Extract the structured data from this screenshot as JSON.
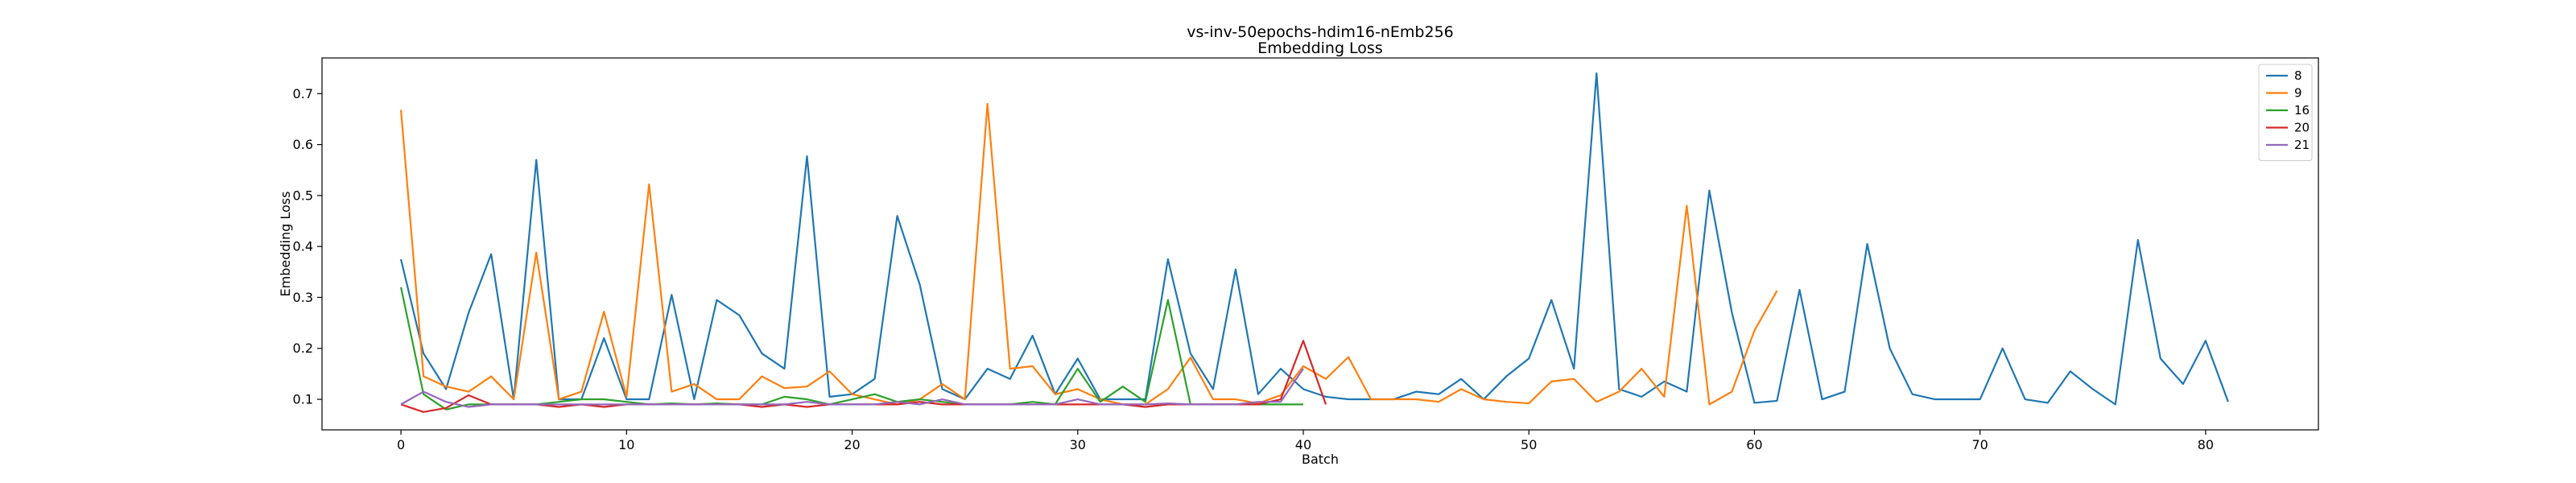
{
  "chart_data": {
    "type": "line",
    "title": "vs-inv-50epochs-hdim16-nEmb256",
    "subtitle": "Embedding Loss",
    "xlabel": "Batch",
    "ylabel": "Embedding Loss",
    "xlim": [
      -3.5,
      85
    ],
    "ylim": [
      0.04,
      0.77
    ],
    "xticks": [
      0,
      10,
      20,
      30,
      40,
      50,
      60,
      70,
      80
    ],
    "yticks": [
      0.1,
      0.2,
      0.3,
      0.4,
      0.5,
      0.6,
      0.7
    ],
    "grid": false,
    "legend_position": "top-right",
    "series": [
      {
        "name": "8",
        "color": "#1f77b4",
        "values": [
          0.375,
          0.19,
          0.12,
          0.27,
          0.385,
          0.1,
          0.57,
          0.1,
          0.1,
          0.22,
          0.1,
          0.1,
          0.305,
          0.1,
          0.295,
          0.265,
          0.19,
          0.16,
          0.577,
          0.105,
          0.11,
          0.14,
          0.46,
          0.325,
          0.12,
          0.1,
          0.16,
          0.14,
          0.225,
          0.11,
          0.18,
          0.1,
          0.1,
          0.1,
          0.375,
          0.19,
          0.12,
          0.355,
          0.11,
          0.16,
          0.12,
          0.105,
          0.1,
          0.1,
          0.1,
          0.115,
          0.11,
          0.14,
          0.1,
          0.145,
          0.18,
          0.295,
          0.16,
          0.74,
          0.12,
          0.105,
          0.135,
          0.115,
          0.51,
          0.27,
          0.093,
          0.097,
          0.315,
          0.1,
          0.115,
          0.405,
          0.2,
          0.11,
          0.1,
          0.1,
          0.1,
          0.2,
          0.1,
          0.093,
          0.155,
          0.12,
          0.09,
          0.413,
          0.18,
          0.13,
          0.215,
          0.095
        ]
      },
      {
        "name": "9",
        "color": "#ff7f0e",
        "values": [
          0.668,
          0.145,
          0.125,
          0.115,
          0.145,
          0.1,
          0.388,
          0.1,
          0.115,
          0.272,
          0.105,
          0.522,
          0.115,
          0.13,
          0.1,
          0.1,
          0.145,
          0.122,
          0.125,
          0.155,
          0.11,
          0.1,
          0.09,
          0.1,
          0.13,
          0.1,
          0.68,
          0.16,
          0.165,
          0.11,
          0.12,
          0.1,
          0.09,
          0.09,
          0.12,
          0.182,
          0.1,
          0.1,
          0.092,
          0.108,
          0.165,
          0.14,
          0.183,
          0.1,
          0.1,
          0.1,
          0.095,
          0.12,
          0.1,
          0.095,
          0.092,
          0.135,
          0.14,
          0.095,
          0.115,
          0.16,
          0.105,
          0.48,
          0.09,
          0.115,
          0.235,
          0.313
        ]
      },
      {
        "name": "16",
        "color": "#2ca02c",
        "values": [
          0.32,
          0.11,
          0.08,
          0.09,
          0.09,
          0.09,
          0.09,
          0.095,
          0.1,
          0.1,
          0.095,
          0.09,
          0.092,
          0.09,
          0.092,
          0.09,
          0.09,
          0.105,
          0.1,
          0.09,
          0.1,
          0.11,
          0.095,
          0.1,
          0.095,
          0.09,
          0.09,
          0.09,
          0.095,
          0.09,
          0.16,
          0.095,
          0.125,
          0.095,
          0.295,
          0.09,
          0.09,
          0.09,
          0.09,
          0.09,
          0.09
        ]
      },
      {
        "name": "20",
        "color": "#d62728",
        "values": [
          0.09,
          0.075,
          0.083,
          0.108,
          0.09,
          0.09,
          0.09,
          0.085,
          0.09,
          0.085,
          0.09,
          0.09,
          0.09,
          0.09,
          0.09,
          0.09,
          0.085,
          0.09,
          0.085,
          0.09,
          0.09,
          0.09,
          0.09,
          0.095,
          0.09,
          0.09,
          0.09,
          0.09,
          0.09,
          0.09,
          0.09,
          0.09,
          0.09,
          0.085,
          0.09,
          0.09,
          0.09,
          0.09,
          0.09,
          0.1,
          0.215,
          0.09
        ]
      },
      {
        "name": "21",
        "color": "#9467bd",
        "values": [
          0.09,
          0.115,
          0.095,
          0.085,
          0.09,
          0.09,
          0.09,
          0.09,
          0.09,
          0.09,
          0.09,
          0.09,
          0.09,
          0.09,
          0.09,
          0.09,
          0.09,
          0.09,
          0.095,
          0.09,
          0.09,
          0.09,
          0.095,
          0.09,
          0.1,
          0.09,
          0.09,
          0.09,
          0.09,
          0.09,
          0.1,
          0.09,
          0.09,
          0.09,
          0.092,
          0.09,
          0.09,
          0.09,
          0.095,
          0.095,
          0.16
        ]
      }
    ]
  }
}
